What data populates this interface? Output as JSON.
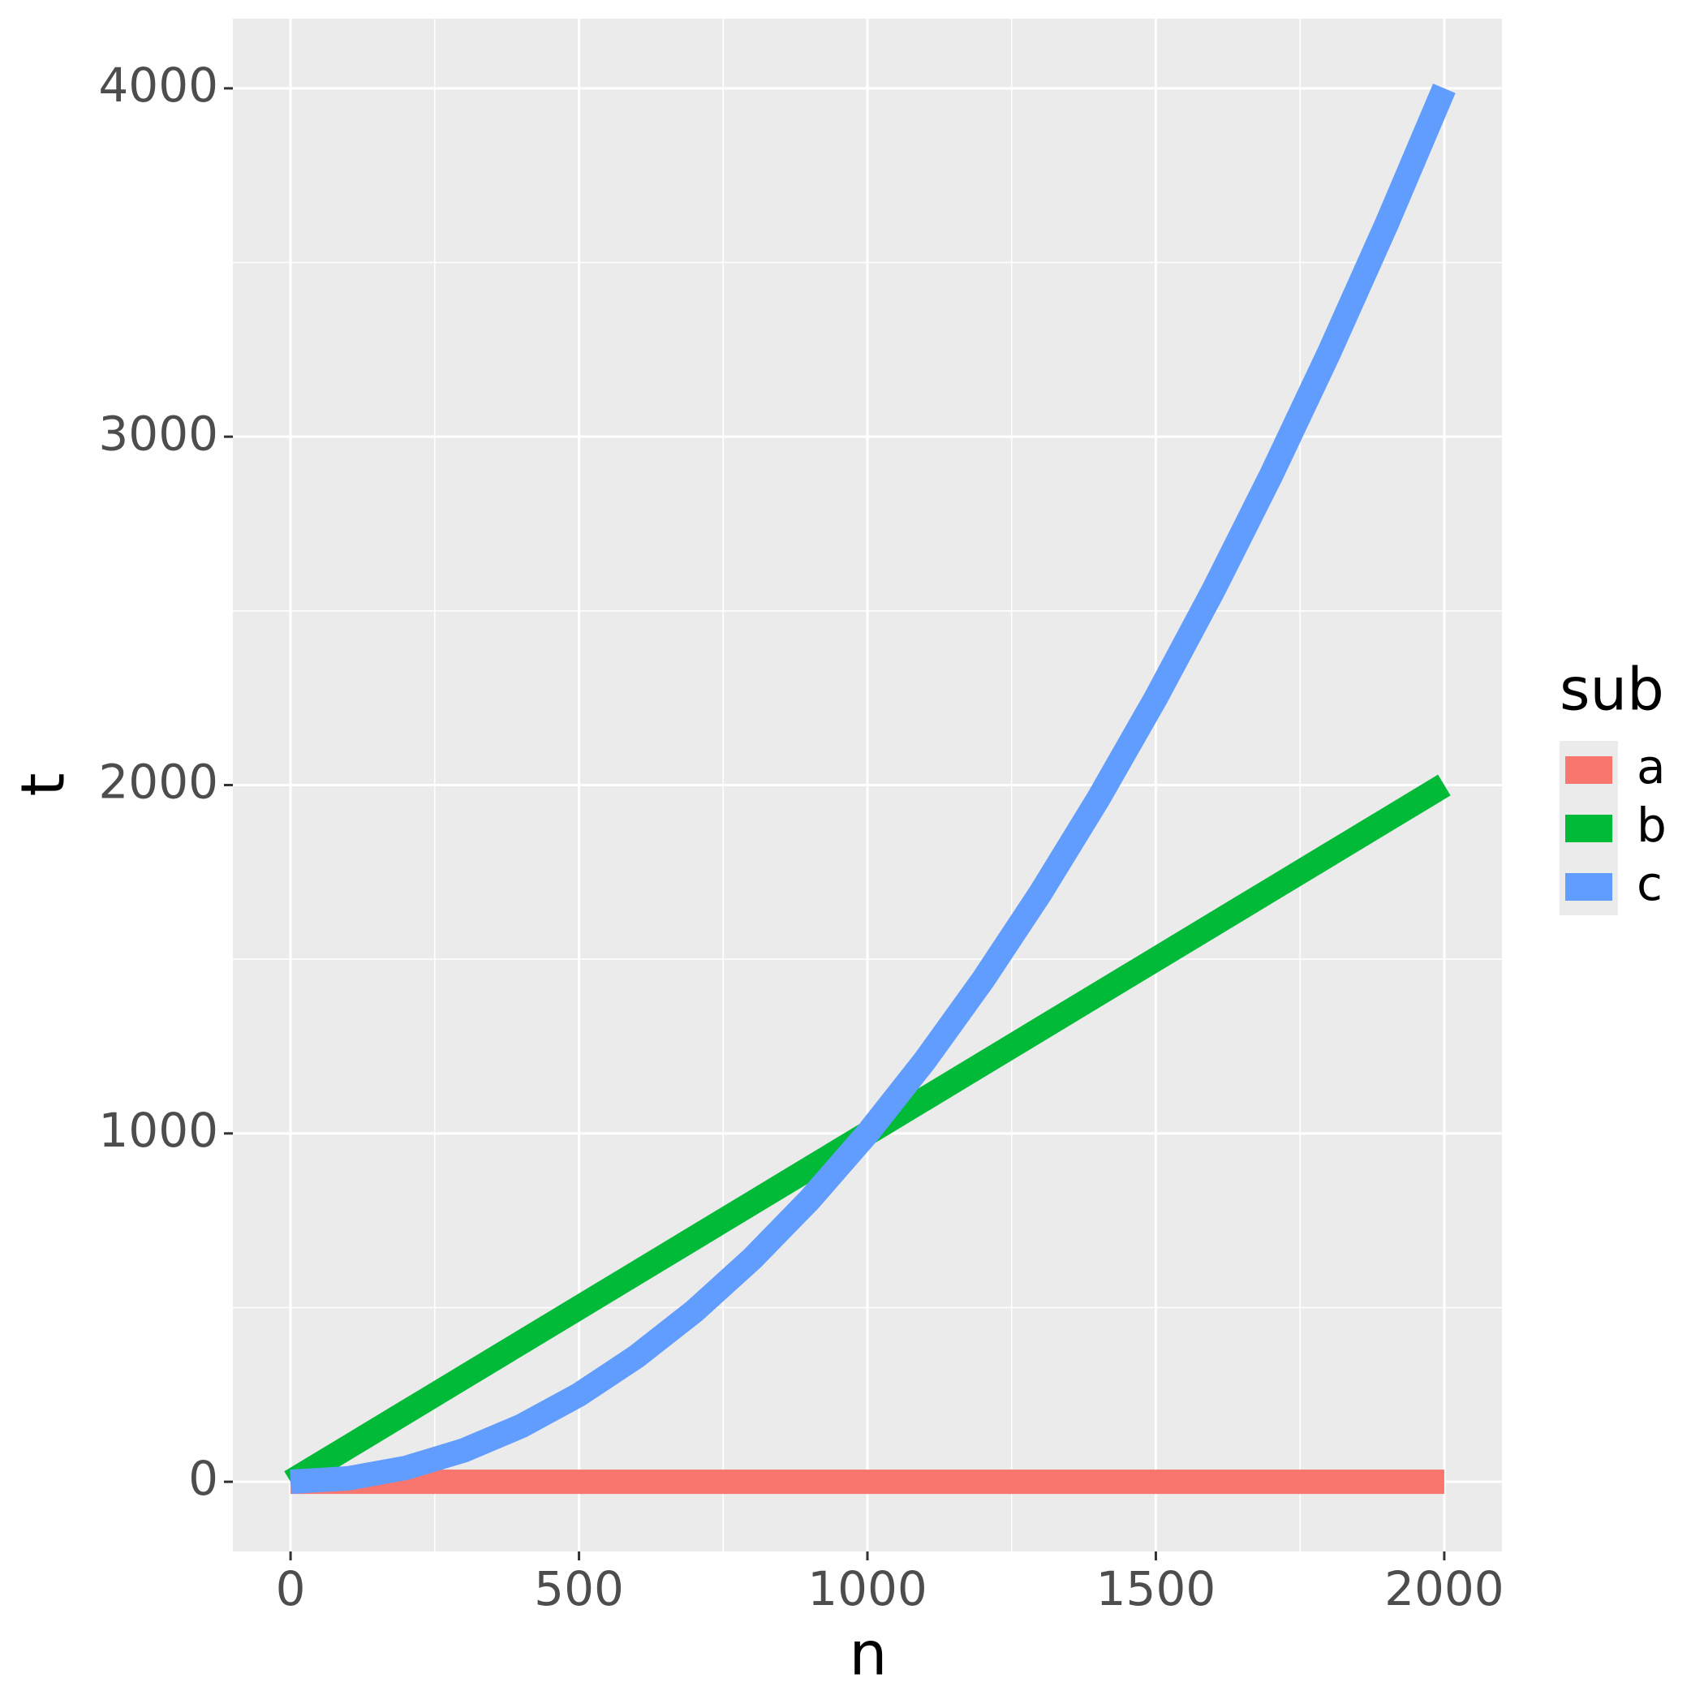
{
  "chart_data": {
    "type": "line",
    "x_label": "n",
    "y_label": "t",
    "legend_title": "sub",
    "x": [
      0,
      100,
      200,
      300,
      400,
      500,
      600,
      700,
      800,
      900,
      1000,
      1100,
      1200,
      1300,
      1400,
      1500,
      1600,
      1700,
      1800,
      1900,
      2000
    ],
    "series": [
      {
        "name": "a",
        "color": "#f8766d",
        "values": [
          0,
          0,
          0,
          0,
          0,
          0,
          0,
          0,
          0,
          0,
          0,
          0,
          0,
          0,
          0,
          0,
          0,
          0,
          0,
          0,
          0
        ]
      },
      {
        "name": "b",
        "color": "#00ba38",
        "values": [
          0,
          100,
          200,
          300,
          400,
          500,
          600,
          700,
          800,
          900,
          1000,
          1100,
          1200,
          1300,
          1400,
          1500,
          1600,
          1700,
          1800,
          1900,
          2000
        ]
      },
      {
        "name": "c",
        "color": "#619cff",
        "values": [
          0,
          10,
          40,
          90,
          160,
          250,
          360,
          490,
          640,
          810,
          1000,
          1210,
          1440,
          1690,
          1960,
          2250,
          2560,
          2890,
          3240,
          3610,
          4000
        ]
      }
    ],
    "xlim": [
      -100,
      2100
    ],
    "xticks": [
      0,
      500,
      1000,
      1500,
      2000
    ],
    "ylim": [
      -200,
      4200
    ],
    "yticks": [
      0,
      1000,
      2000,
      3000,
      4000
    ],
    "grid": true,
    "minor_grid": true,
    "legend": "right"
  }
}
